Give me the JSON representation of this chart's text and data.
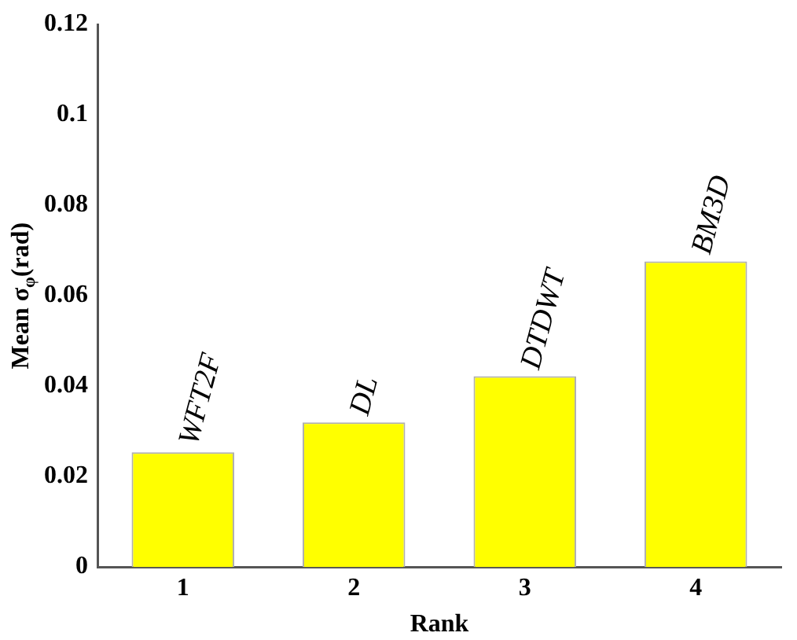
{
  "chart_data": {
    "type": "bar",
    "xlabel": "Rank",
    "ylabel": "Mean σ$_{φ}$(rad)",
    "categories": [
      "1",
      "2",
      "3",
      "4"
    ],
    "values": [
      0.0254,
      0.032,
      0.0422,
      0.0676
    ],
    "color": "#ffff00",
    "ylim": [
      0,
      0.12
    ],
    "yticks": [
      0,
      0.02,
      0.04,
      0.06,
      0.08,
      0.1,
      0.12
    ],
    "grid": false,
    "legend": false,
    "annotations": [
      {
        "text": "WFT2F",
        "x": "1",
        "y": 0.0254
      },
      {
        "text": "DL",
        "x": "2",
        "y": 0.032
      },
      {
        "text": "DTDWT",
        "x": "3",
        "y": 0.0422
      },
      {
        "text": "BM3D",
        "x": "4",
        "y": 0.0676
      }
    ]
  }
}
